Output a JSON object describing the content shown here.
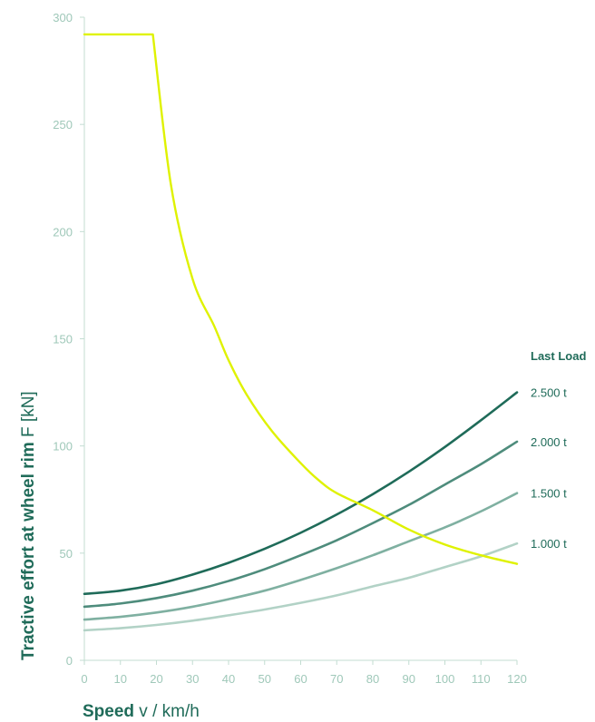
{
  "chart_data": {
    "type": "line",
    "xlabel_bold": "Speed",
    "xlabel_rest": " v / km/h",
    "ylabel_bold": "Tractive effort at wheel rim",
    "ylabel_rest": " F [kN]",
    "xlim": [
      0,
      120
    ],
    "ylim": [
      0,
      300
    ],
    "x_ticks": [
      "0",
      "10",
      "20",
      "30",
      "40",
      "50",
      "60",
      "70",
      "80",
      "90",
      "100",
      "110",
      "120"
    ],
    "y_ticks": [
      "0",
      "50",
      "100",
      "150",
      "200",
      "250",
      "300"
    ],
    "legend_title": "Last Load",
    "grid": false,
    "tractive_effort": {
      "color": "#dff200",
      "points": [
        [
          0,
          292
        ],
        [
          19,
          292
        ],
        [
          24,
          222
        ],
        [
          30,
          178
        ],
        [
          36,
          156
        ],
        [
          40,
          140
        ],
        [
          45,
          124
        ],
        [
          52,
          107
        ],
        [
          60,
          92
        ],
        [
          65,
          84
        ],
        [
          70,
          78
        ],
        [
          80,
          70
        ],
        [
          90,
          61
        ],
        [
          100,
          54
        ],
        [
          110,
          49
        ],
        [
          120,
          45
        ]
      ]
    },
    "series": [
      {
        "name": "2.500 t",
        "color": "#1f6b59",
        "values": [
          [
            0,
            31
          ],
          [
            10,
            32.5
          ],
          [
            20,
            35.5
          ],
          [
            30,
            40
          ],
          [
            40,
            45.5
          ],
          [
            50,
            52
          ],
          [
            60,
            59.5
          ],
          [
            70,
            68
          ],
          [
            80,
            77.5
          ],
          [
            90,
            88
          ],
          [
            100,
            99.5
          ],
          [
            110,
            112
          ],
          [
            120,
            125
          ]
        ]
      },
      {
        "name": "2.000 t",
        "color": "#4e8c7c",
        "values": [
          [
            0,
            25
          ],
          [
            10,
            26.5
          ],
          [
            20,
            29
          ],
          [
            30,
            32.5
          ],
          [
            40,
            37
          ],
          [
            50,
            42.5
          ],
          [
            60,
            49
          ],
          [
            70,
            56
          ],
          [
            80,
            64
          ],
          [
            90,
            72.5
          ],
          [
            100,
            82
          ],
          [
            110,
            91.5
          ],
          [
            120,
            102
          ]
        ]
      },
      {
        "name": "1.500 t",
        "color": "#7fb0a1",
        "values": [
          [
            0,
            19
          ],
          [
            10,
            20.3
          ],
          [
            20,
            22.3
          ],
          [
            30,
            25
          ],
          [
            40,
            28.5
          ],
          [
            50,
            32.5
          ],
          [
            60,
            37.5
          ],
          [
            70,
            43
          ],
          [
            80,
            49
          ],
          [
            90,
            55.5
          ],
          [
            100,
            62
          ],
          [
            110,
            69.5
          ],
          [
            120,
            78
          ]
        ]
      },
      {
        "name": "1.000 t",
        "color": "#b2d2c6",
        "values": [
          [
            0,
            14
          ],
          [
            10,
            15
          ],
          [
            20,
            16.5
          ],
          [
            30,
            18.5
          ],
          [
            40,
            21
          ],
          [
            50,
            23.7
          ],
          [
            60,
            26.8
          ],
          [
            70,
            30.3
          ],
          [
            80,
            34.5
          ],
          [
            90,
            38.5
          ],
          [
            100,
            43.5
          ],
          [
            110,
            48.5
          ],
          [
            120,
            54.5
          ]
        ]
      }
    ]
  }
}
